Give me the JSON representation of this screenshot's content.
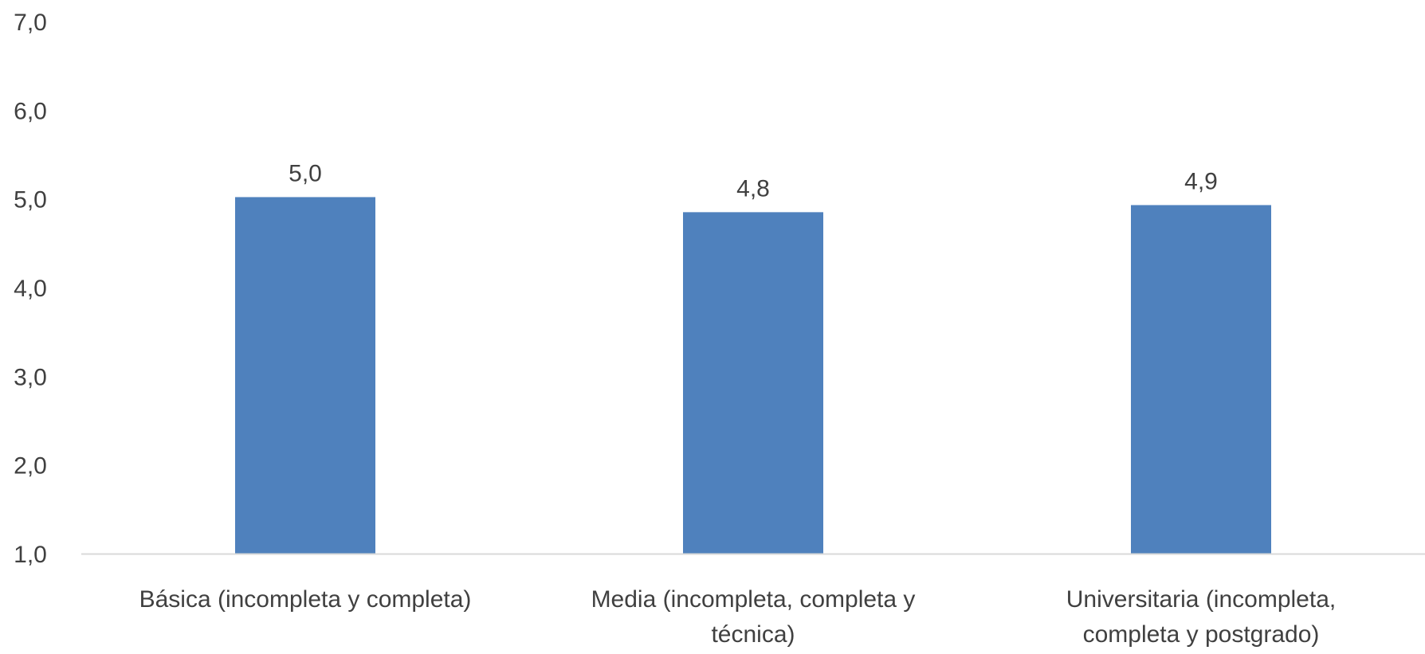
{
  "chart_data": {
    "type": "bar",
    "categories": [
      [
        "Básica (incompleta y completa)"
      ],
      [
        "Media (incompleta, completa y",
        "técnica)"
      ],
      [
        "Universitaria (incompleta,",
        "completa y postgrado)"
      ]
    ],
    "values": [
      5.02,
      4.85,
      4.93
    ],
    "data_labels": [
      "5,0",
      "4,8",
      "4,9"
    ],
    "y_ticks": [
      "1,0",
      "2,0",
      "3,0",
      "4,0",
      "5,0",
      "6,0",
      "7,0"
    ],
    "ylim": [
      1,
      7
    ],
    "title": "",
    "xlabel": "",
    "ylabel": "",
    "grid": false,
    "legend": "none",
    "colors": {
      "bar": "#4f81bd",
      "axis": "#d9d9d9",
      "text": "#404040"
    }
  }
}
